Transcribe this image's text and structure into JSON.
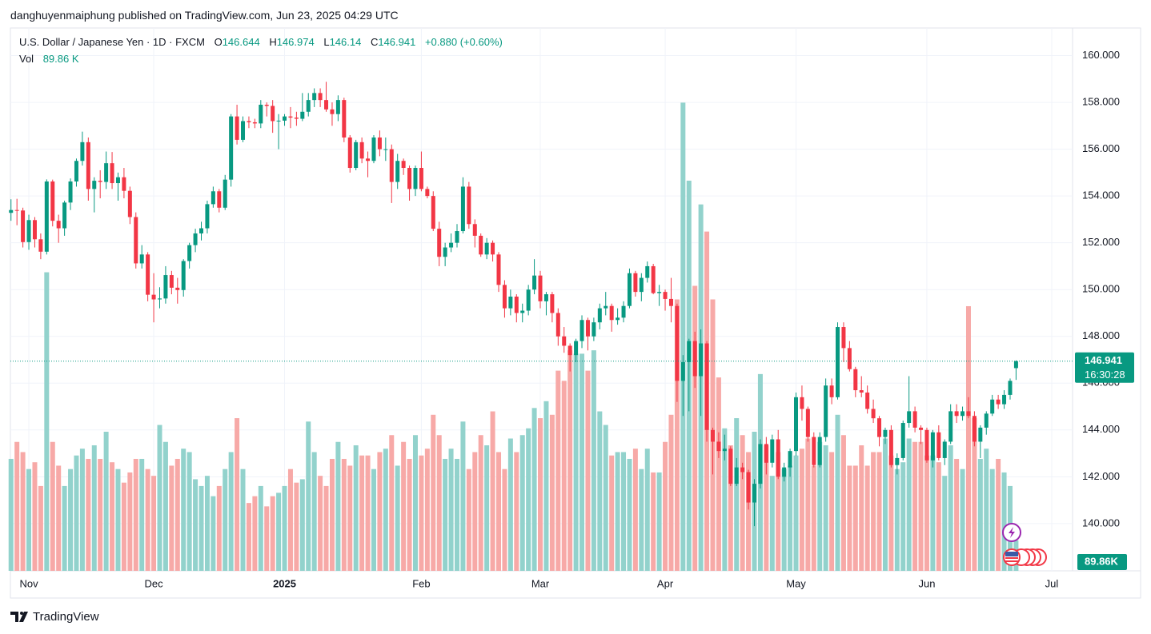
{
  "header": {
    "byline": "danghuyenmaiphung published on TradingView.com, Jun 23, 2025 04:29 UTC"
  },
  "footer": {
    "brand": "TradingView"
  },
  "chart_data": {
    "type": "candlestick",
    "title": "U.S. Dollar / Japanese Yen · 1D · FXCM",
    "legend": {
      "open_label": "O",
      "open": 146.644,
      "high_label": "H",
      "high": 146.974,
      "low_label": "L",
      "low": 146.14,
      "close_label": "C",
      "close": 146.941,
      "change": "+0.880",
      "change_pct": "(+0.60%)",
      "volume_label": "Vol",
      "volume_value": "89.86 K"
    },
    "last_price": 146.941,
    "countdown": "16:30:28",
    "volume_badge": "89.86K",
    "up_color": "#089981",
    "down_color": "#f23645",
    "volume_up_color": "#92d2cc",
    "volume_down_color": "#f7a9a7",
    "grid": true,
    "ylim": [
      137.98,
      161.18
    ],
    "yticks": [
      {
        "value": 140,
        "label": "140.000"
      },
      {
        "value": 142,
        "label": "142.000"
      },
      {
        "value": 144,
        "label": "144.000"
      },
      {
        "value": 146,
        "label": "146.000"
      },
      {
        "value": 148,
        "label": "148.000"
      },
      {
        "value": 150,
        "label": "150.000"
      },
      {
        "value": 152,
        "label": "152.000"
      },
      {
        "value": 154,
        "label": "154.000"
      },
      {
        "value": 156,
        "label": "156.000"
      },
      {
        "value": 158,
        "label": "158.000"
      },
      {
        "value": 160,
        "label": "160.000"
      }
    ],
    "xlim": [
      -0.1,
      178.5
    ],
    "xticks": [
      {
        "value": 3,
        "label": "Nov"
      },
      {
        "value": 24,
        "label": "Dec"
      },
      {
        "value": 46,
        "label": "2025",
        "bold": true
      },
      {
        "value": 69,
        "label": "Feb"
      },
      {
        "value": 89,
        "label": "Mar"
      },
      {
        "value": 110,
        "label": "Apr"
      },
      {
        "value": 132,
        "label": "May"
      },
      {
        "value": 154,
        "label": "Jun"
      },
      {
        "value": 175,
        "label": "Jul"
      }
    ],
    "vlim": [
      0,
      1600
    ],
    "candles": [
      [
        153.28,
        153.86,
        152.94,
        153.4
      ],
      [
        153.4,
        153.88,
        152.75,
        153.38
      ],
      [
        153.38,
        153.5,
        151.8,
        152.03
      ],
      [
        152.03,
        153.2,
        151.7,
        152.97
      ],
      [
        152.97,
        153.1,
        151.8,
        152.15
      ],
      [
        152.15,
        152.4,
        151.3,
        151.62
      ],
      [
        151.62,
        154.71,
        151.5,
        154.62
      ],
      [
        154.62,
        154.7,
        152.7,
        152.94
      ],
      [
        152.94,
        153.2,
        152.0,
        152.62
      ],
      [
        152.62,
        153.8,
        152.3,
        153.72
      ],
      [
        153.72,
        154.75,
        153.4,
        154.62
      ],
      [
        154.62,
        155.6,
        154.4,
        155.5
      ],
      [
        155.5,
        156.75,
        155.3,
        156.3
      ],
      [
        156.3,
        156.5,
        153.8,
        154.3
      ],
      [
        154.3,
        154.8,
        153.3,
        154.65
      ],
      [
        154.65,
        155.1,
        153.9,
        154.6
      ],
      [
        154.6,
        155.9,
        154.3,
        155.4
      ],
      [
        155.4,
        155.88,
        154.3,
        154.55
      ],
      [
        154.55,
        155.0,
        153.8,
        154.8
      ],
      [
        154.8,
        155.2,
        153.9,
        154.22
      ],
      [
        154.22,
        154.4,
        152.8,
        153.1
      ],
      [
        153.1,
        153.3,
        150.9,
        151.12
      ],
      [
        151.12,
        151.9,
        150.9,
        151.5
      ],
      [
        151.5,
        151.6,
        149.5,
        149.78
      ],
      [
        149.78,
        150.7,
        148.6,
        149.58
      ],
      [
        149.58,
        150.1,
        149.2,
        149.62
      ],
      [
        149.62,
        151.0,
        149.4,
        150.62
      ],
      [
        150.62,
        150.8,
        149.8,
        150.08
      ],
      [
        150.08,
        150.5,
        149.4,
        149.98
      ],
      [
        149.98,
        151.3,
        149.7,
        151.22
      ],
      [
        151.22,
        152.0,
        150.9,
        151.9
      ],
      [
        151.9,
        152.6,
        151.6,
        152.4
      ],
      [
        152.4,
        152.9,
        152.1,
        152.62
      ],
      [
        152.62,
        153.8,
        152.4,
        153.65
      ],
      [
        153.65,
        154.4,
        153.5,
        154.2
      ],
      [
        154.2,
        154.3,
        153.3,
        153.5
      ],
      [
        153.5,
        154.9,
        153.4,
        154.7
      ],
      [
        154.7,
        157.5,
        154.4,
        157.4
      ],
      [
        157.4,
        157.9,
        156.2,
        156.4
      ],
      [
        156.4,
        157.4,
        156.3,
        157.2
      ],
      [
        157.2,
        157.4,
        156.9,
        157.15
      ],
      [
        157.15,
        157.3,
        156.9,
        157.1
      ],
      [
        157.1,
        158.1,
        156.9,
        157.9
      ],
      [
        157.9,
        158.0,
        157.4,
        157.85
      ],
      [
        157.85,
        158.1,
        156.7,
        157.2
      ],
      [
        157.2,
        157.5,
        156.0,
        157.22
      ],
      [
        157.22,
        157.5,
        157.0,
        157.4
      ],
      [
        157.4,
        157.8,
        156.9,
        157.35
      ],
      [
        157.35,
        157.6,
        157.0,
        157.3
      ],
      [
        157.3,
        158.4,
        157.2,
        157.6
      ],
      [
        157.6,
        158.4,
        157.4,
        158.1
      ],
      [
        158.1,
        158.6,
        157.8,
        158.4
      ],
      [
        158.4,
        158.6,
        157.8,
        158.1
      ],
      [
        158.1,
        158.88,
        157.6,
        157.7
      ],
      [
        157.7,
        158.0,
        157.0,
        157.5
      ],
      [
        157.5,
        158.3,
        157.2,
        158.1
      ],
      [
        158.1,
        158.2,
        156.3,
        156.5
      ],
      [
        156.5,
        156.6,
        155.0,
        155.2
      ],
      [
        155.2,
        156.4,
        155.1,
        156.3
      ],
      [
        156.3,
        156.5,
        155.4,
        155.6
      ],
      [
        155.6,
        155.9,
        154.8,
        155.5
      ],
      [
        155.5,
        156.6,
        155.4,
        156.5
      ],
      [
        156.5,
        156.8,
        155.7,
        156.0
      ],
      [
        156.0,
        156.5,
        155.5,
        156.0
      ],
      [
        156.0,
        156.2,
        153.7,
        154.6
      ],
      [
        154.6,
        155.8,
        154.3,
        155.5
      ],
      [
        155.5,
        155.6,
        154.9,
        155.2
      ],
      [
        155.2,
        155.3,
        153.8,
        154.3
      ],
      [
        154.3,
        155.3,
        154.0,
        155.2
      ],
      [
        155.2,
        155.9,
        154.2,
        154.3
      ],
      [
        154.3,
        154.4,
        153.9,
        154.0
      ],
      [
        154.0,
        154.2,
        152.5,
        152.6
      ],
      [
        152.6,
        152.9,
        151.0,
        151.4
      ],
      [
        151.4,
        152.0,
        151.0,
        151.8
      ],
      [
        151.8,
        152.4,
        151.6,
        152.0
      ],
      [
        152.0,
        152.8,
        151.8,
        152.5
      ],
      [
        152.5,
        154.8,
        152.4,
        154.4
      ],
      [
        154.4,
        154.6,
        152.6,
        152.8
      ],
      [
        152.8,
        153.0,
        151.8,
        152.3
      ],
      [
        152.3,
        152.4,
        151.4,
        151.5
      ],
      [
        151.5,
        152.2,
        151.3,
        152.0
      ],
      [
        152.0,
        152.1,
        151.2,
        151.5
      ],
      [
        151.5,
        151.6,
        149.9,
        150.2
      ],
      [
        150.2,
        150.4,
        148.8,
        149.2
      ],
      [
        149.2,
        150.0,
        148.9,
        149.7
      ],
      [
        149.7,
        149.8,
        148.6,
        149.0
      ],
      [
        149.0,
        149.4,
        148.6,
        149.1
      ],
      [
        149.1,
        150.2,
        148.9,
        150.0
      ],
      [
        150.0,
        151.3,
        149.8,
        150.6
      ],
      [
        150.6,
        150.8,
        149.2,
        149.5
      ],
      [
        149.5,
        149.9,
        148.9,
        149.8
      ],
      [
        149.8,
        149.9,
        148.6,
        149.0
      ],
      [
        149.0,
        149.2,
        147.6,
        148.0
      ],
      [
        148.0,
        148.4,
        147.3,
        147.6
      ],
      [
        147.6,
        147.7,
        146.5,
        147.2
      ],
      [
        147.2,
        147.9,
        146.9,
        147.8
      ],
      [
        147.8,
        148.9,
        147.5,
        148.7
      ],
      [
        148.7,
        148.8,
        147.4,
        148.0
      ],
      [
        148.0,
        148.8,
        147.8,
        148.6
      ],
      [
        148.6,
        149.4,
        148.3,
        149.2
      ],
      [
        149.2,
        149.9,
        148.9,
        149.3
      ],
      [
        149.3,
        149.4,
        148.2,
        148.7
      ],
      [
        148.7,
        149.2,
        148.5,
        148.8
      ],
      [
        148.8,
        149.5,
        148.6,
        149.3
      ],
      [
        149.3,
        150.9,
        149.2,
        150.7
      ],
      [
        150.7,
        150.8,
        149.7,
        149.9
      ],
      [
        149.9,
        150.7,
        149.5,
        150.5
      ],
      [
        150.5,
        151.2,
        150.3,
        151.0
      ],
      [
        151.0,
        151.1,
        149.8,
        149.85
      ],
      [
        149.85,
        150.2,
        149.3,
        149.9
      ],
      [
        149.9,
        150.0,
        149.1,
        149.6
      ],
      [
        149.6,
        150.5,
        148.6,
        149.3
      ],
      [
        149.3,
        149.4,
        145.2,
        146.1
      ],
      [
        146.1,
        147.2,
        144.6,
        146.9
      ],
      [
        146.9,
        147.9,
        144.8,
        147.8
      ],
      [
        147.8,
        148.2,
        145.8,
        146.3
      ],
      [
        146.3,
        148.3,
        144.6,
        147.7
      ],
      [
        147.7,
        147.8,
        143.5,
        144.0
      ],
      [
        144.0,
        144.1,
        142.1,
        143.5
      ],
      [
        143.5,
        143.9,
        142.8,
        143.1
      ],
      [
        143.1,
        143.8,
        142.7,
        143.2
      ],
      [
        143.2,
        143.3,
        141.6,
        141.7
      ],
      [
        141.7,
        142.8,
        141.6,
        142.4
      ],
      [
        142.4,
        142.6,
        141.9,
        142.2
      ],
      [
        142.2,
        142.3,
        140.6,
        140.9
      ],
      [
        140.9,
        141.9,
        139.89,
        141.7
      ],
      [
        141.7,
        143.6,
        141.5,
        143.4
      ],
      [
        143.4,
        143.7,
        142.1,
        142.6
      ],
      [
        142.6,
        143.8,
        142.4,
        143.6
      ],
      [
        143.6,
        144.0,
        141.9,
        142.0
      ],
      [
        142.0,
        142.6,
        141.8,
        142.4
      ],
      [
        142.4,
        143.2,
        142.0,
        143.1
      ],
      [
        143.1,
        145.6,
        142.9,
        145.4
      ],
      [
        145.4,
        145.9,
        144.4,
        144.9
      ],
      [
        144.9,
        145.0,
        143.5,
        143.7
      ],
      [
        143.7,
        143.9,
        142.4,
        142.5
      ],
      [
        142.5,
        143.9,
        142.4,
        143.7
      ],
      [
        143.7,
        146.2,
        143.5,
        145.9
      ],
      [
        145.9,
        146.2,
        145.1,
        145.4
      ],
      [
        145.4,
        148.6,
        145.3,
        148.4
      ],
      [
        148.4,
        148.6,
        146.9,
        147.5
      ],
      [
        147.5,
        147.8,
        146.5,
        146.6
      ],
      [
        146.6,
        146.7,
        145.4,
        145.7
      ],
      [
        145.7,
        146.3,
        145.4,
        145.6
      ],
      [
        145.6,
        145.9,
        144.7,
        144.9
      ],
      [
        144.9,
        145.3,
        144.3,
        144.5
      ],
      [
        144.5,
        144.6,
        143.3,
        143.7
      ],
      [
        143.7,
        144.1,
        143.4,
        144.0
      ],
      [
        144.0,
        144.2,
        142.4,
        142.5
      ],
      [
        142.5,
        143.0,
        142.1,
        142.8
      ],
      [
        142.8,
        144.4,
        142.7,
        144.3
      ],
      [
        144.3,
        146.3,
        144.1,
        144.8
      ],
      [
        144.8,
        145.0,
        143.9,
        144.1
      ],
      [
        144.1,
        144.2,
        143.4,
        144.0
      ],
      [
        144.0,
        144.1,
        142.6,
        142.7
      ],
      [
        142.7,
        144.0,
        142.4,
        143.9
      ],
      [
        143.9,
        144.2,
        142.7,
        142.8
      ],
      [
        142.8,
        143.6,
        142.5,
        143.5
      ],
      [
        143.5,
        145.1,
        143.4,
        144.8
      ],
      [
        144.8,
        145.1,
        144.3,
        144.6
      ],
      [
        144.6,
        145.0,
        144.4,
        144.8
      ],
      [
        144.8,
        145.4,
        144.5,
        144.6
      ],
      [
        144.6,
        144.8,
        143.3,
        143.5
      ],
      [
        143.5,
        144.2,
        142.8,
        144.1
      ],
      [
        144.1,
        144.8,
        143.8,
        144.7
      ],
      [
        144.7,
        145.5,
        144.6,
        145.3
      ],
      [
        145.3,
        145.5,
        144.9,
        145.1
      ],
      [
        145.1,
        145.7,
        144.9,
        145.5
      ],
      [
        145.5,
        146.2,
        145.3,
        146.1
      ],
      [
        146.644,
        146.974,
        146.14,
        146.941
      ]
    ],
    "volume": [
      330,
      380,
      350,
      300,
      320,
      250,
      880,
      380,
      310,
      250,
      300,
      340,
      360,
      330,
      370,
      330,
      410,
      320,
      300,
      260,
      290,
      330,
      330,
      300,
      280,
      430,
      380,
      310,
      330,
      360,
      350,
      270,
      250,
      280,
      220,
      250,
      300,
      350,
      450,
      300,
      200,
      220,
      250,
      190,
      220,
      230,
      250,
      300,
      260,
      270,
      440,
      350,
      280,
      250,
      330,
      380,
      330,
      310,
      370,
      340,
      340,
      300,
      350,
      360,
      400,
      310,
      380,
      330,
      400,
      340,
      360,
      460,
      400,
      330,
      360,
      330,
      440,
      300,
      350,
      400,
      370,
      470,
      350,
      300,
      390,
      350,
      400,
      420,
      480,
      450,
      500,
      460,
      590,
      560,
      650,
      640,
      640,
      590,
      650,
      470,
      430,
      340,
      350,
      350,
      330,
      360,
      300,
      360,
      290,
      290,
      380,
      460,
      800,
      1380,
      1150,
      840,
      1080,
      1000,
      800,
      570,
      420,
      370,
      450,
      400,
      350,
      410,
      580,
      370,
      280,
      350,
      300,
      310,
      340,
      360,
      390,
      310,
      380,
      370,
      350,
      460,
      400,
      310,
      310,
      370,
      310,
      350,
      350,
      390,
      340,
      300,
      320,
      390,
      380,
      380,
      340,
      340,
      320,
      280,
      370,
      330,
      300,
      780,
      450,
      330,
      360,
      300,
      330,
      290,
      250,
      89.86
    ]
  }
}
